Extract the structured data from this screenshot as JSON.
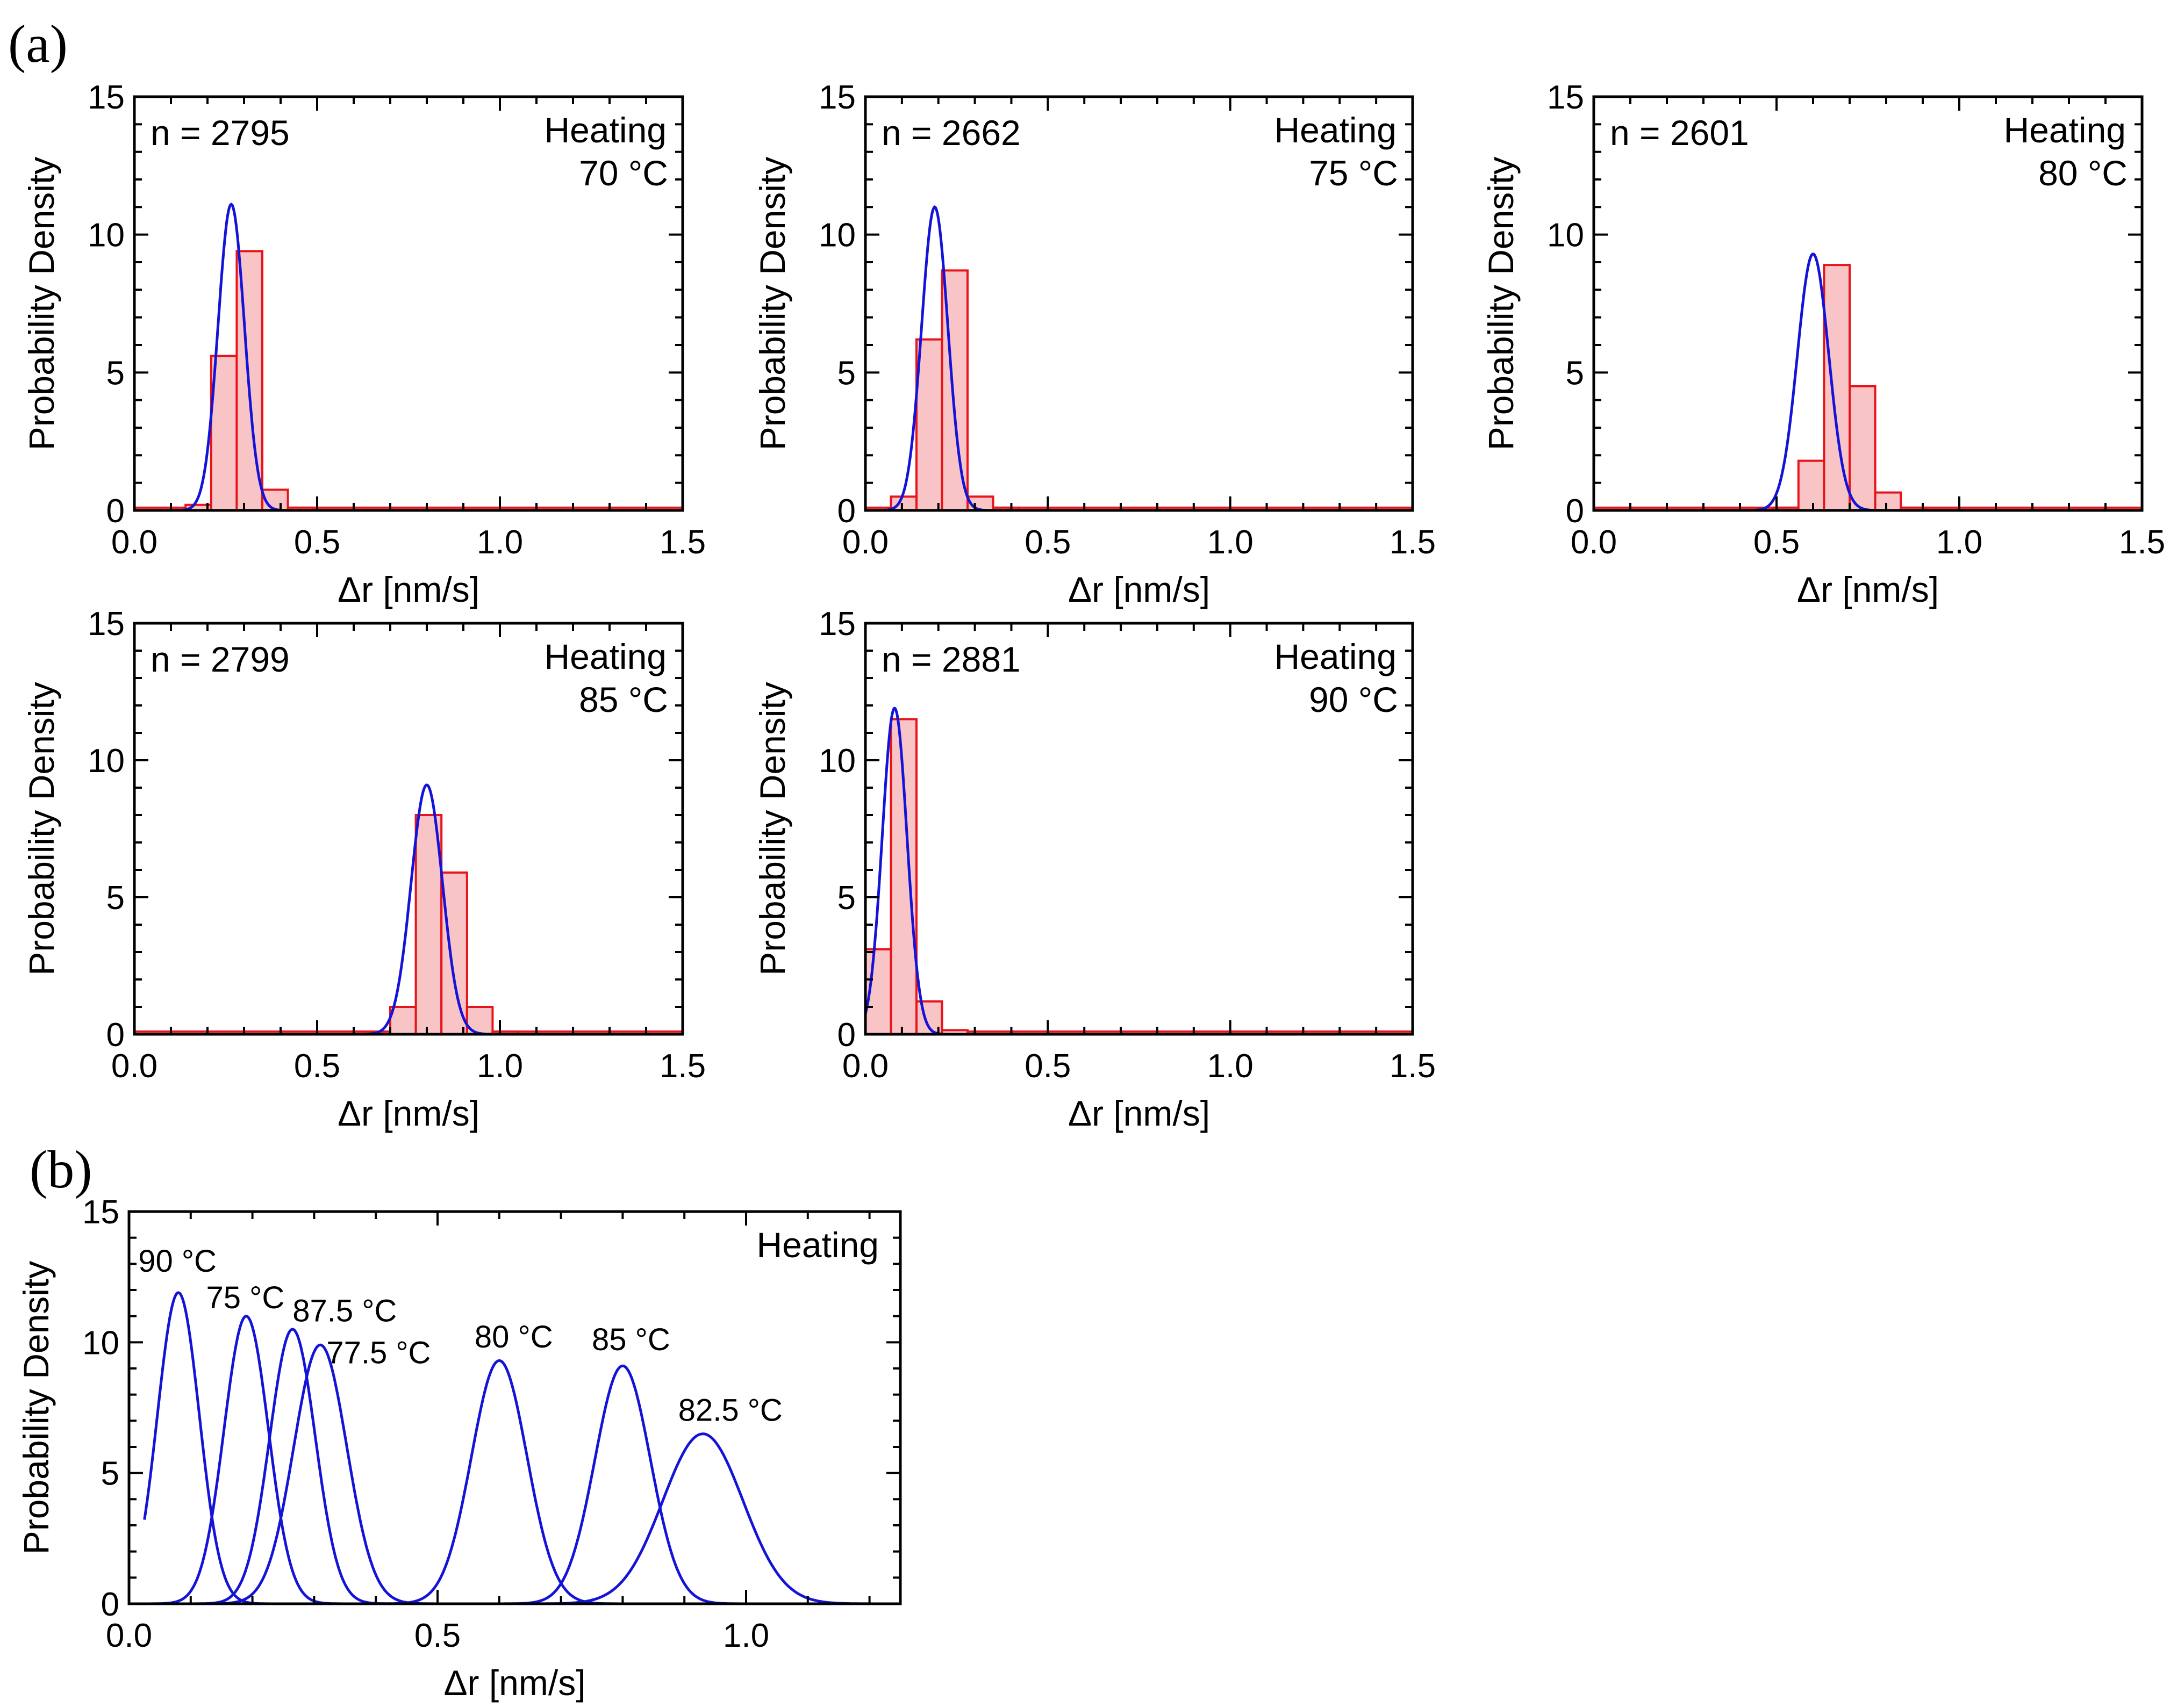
{
  "figure": {
    "label_a": "(a)",
    "label_b": "(b)"
  },
  "colors": {
    "hist_edge": "#e8141a",
    "hist_fill": "#f9c4c6",
    "fit": "#1414d8",
    "axis": "#000000"
  },
  "chart_data": [
    {
      "type": "bar",
      "panel": "a1",
      "annotation_n": "n = 2795",
      "annotation_mode": "Heating",
      "annotation_temp": "70 °C",
      "xlabel": "Δr [nm/s]",
      "ylabel": "Probability Density",
      "xlim": [
        0,
        1.5
      ],
      "ylim": [
        0,
        15
      ],
      "xticks": [
        0.0,
        0.5,
        1.0,
        1.5
      ],
      "xtick_labels": [
        "0.0",
        "0.5",
        "1.0",
        "1.5"
      ],
      "yticks": [
        0,
        5,
        10,
        15
      ],
      "ytick_labels": [
        "0",
        "5",
        "10",
        "15"
      ],
      "bin_width": 0.07,
      "bins": [
        [
          0.14,
          0.2
        ],
        [
          0.21,
          5.6
        ],
        [
          0.28,
          9.4
        ],
        [
          0.35,
          0.75
        ],
        [
          0.42,
          0.1
        ]
      ],
      "baseline": {
        "from": 0.0,
        "to": 1.5,
        "value": 0.1
      },
      "fit": {
        "mu": 0.265,
        "sigma": 0.036,
        "peak": 11.1,
        "x_from": 0.05,
        "x_to": 0.47
      }
    },
    {
      "type": "bar",
      "panel": "a2",
      "annotation_n": "n = 2662",
      "annotation_mode": "Heating",
      "annotation_temp": "75 °C",
      "xlabel": "Δr [nm/s]",
      "ylabel": "Probability Density",
      "xlim": [
        0,
        1.5
      ],
      "ylim": [
        0,
        15
      ],
      "xticks": [
        0.0,
        0.5,
        1.0,
        1.5
      ],
      "xtick_labels": [
        "0.0",
        "0.5",
        "1.0",
        "1.5"
      ],
      "yticks": [
        0,
        5,
        10,
        15
      ],
      "ytick_labels": [
        "0",
        "5",
        "10",
        "15"
      ],
      "bin_width": 0.07,
      "bins": [
        [
          0.07,
          0.5
        ],
        [
          0.14,
          6.2
        ],
        [
          0.21,
          8.7
        ],
        [
          0.28,
          0.5
        ],
        [
          0.35,
          0.1
        ]
      ],
      "baseline": {
        "from": 0.0,
        "to": 1.5,
        "value": 0.1
      },
      "fit": {
        "mu": 0.19,
        "sigma": 0.036,
        "peak": 11.0,
        "x_from": 0.0,
        "x_to": 0.4
      }
    },
    {
      "type": "bar",
      "panel": "a3",
      "annotation_n": "n = 2601",
      "annotation_mode": "Heating",
      "annotation_temp": "80 °C",
      "xlabel": "Δr [nm/s]",
      "ylabel": "Probability Density",
      "xlim": [
        0,
        1.5
      ],
      "ylim": [
        0,
        15
      ],
      "xticks": [
        0.0,
        0.5,
        1.0,
        1.5
      ],
      "xtick_labels": [
        "0.0",
        "0.5",
        "1.0",
        "1.5"
      ],
      "yticks": [
        0,
        5,
        10,
        15
      ],
      "ytick_labels": [
        "0",
        "5",
        "10",
        "15"
      ],
      "bin_width": 0.07,
      "bins": [
        [
          0.49,
          0.1
        ],
        [
          0.56,
          1.8
        ],
        [
          0.63,
          8.9
        ],
        [
          0.7,
          4.5
        ],
        [
          0.77,
          0.65
        ],
        [
          0.84,
          0.1
        ]
      ],
      "baseline": {
        "from": 0.0,
        "to": 1.5,
        "value": 0.1
      },
      "fit": {
        "mu": 0.6,
        "sigma": 0.043,
        "peak": 9.3,
        "x_from": 0.38,
        "x_to": 0.84
      }
    },
    {
      "type": "bar",
      "panel": "a4",
      "annotation_n": "n = 2799",
      "annotation_mode": "Heating",
      "annotation_temp": "85 °C",
      "xlabel": "Δr [nm/s]",
      "ylabel": "Probability Density",
      "xlim": [
        0,
        1.5
      ],
      "ylim": [
        0,
        15
      ],
      "xticks": [
        0.0,
        0.5,
        1.0,
        1.5
      ],
      "xtick_labels": [
        "0.0",
        "0.5",
        "1.0",
        "1.5"
      ],
      "yticks": [
        0,
        5,
        10,
        15
      ],
      "ytick_labels": [
        "0",
        "5",
        "10",
        "15"
      ],
      "bin_width": 0.07,
      "bins": [
        [
          0.7,
          1.0
        ],
        [
          0.77,
          8.0
        ],
        [
          0.84,
          5.9
        ],
        [
          0.91,
          1.0
        ],
        [
          0.98,
          0.1
        ]
      ],
      "baseline": {
        "from": 0.0,
        "to": 1.5,
        "value": 0.1
      },
      "fit": {
        "mu": 0.8,
        "sigma": 0.043,
        "peak": 9.1,
        "x_from": 0.57,
        "x_to": 1.04
      }
    },
    {
      "type": "bar",
      "panel": "a5",
      "annotation_n": "n = 2881",
      "annotation_mode": "Heating",
      "annotation_temp": "90 °C",
      "xlabel": "Δr [nm/s]",
      "ylabel": "Probability Density",
      "xlim": [
        0,
        1.5
      ],
      "ylim": [
        0,
        15
      ],
      "xticks": [
        0.0,
        0.5,
        1.0,
        1.5
      ],
      "xtick_labels": [
        "0.0",
        "0.5",
        "1.0",
        "1.5"
      ],
      "yticks": [
        0,
        5,
        10,
        15
      ],
      "ytick_labels": [
        "0",
        "5",
        "10",
        "15"
      ],
      "bin_width": 0.07,
      "bins": [
        [
          0.0,
          3.1
        ],
        [
          0.07,
          11.5
        ],
        [
          0.14,
          1.2
        ],
        [
          0.21,
          0.15
        ]
      ],
      "baseline": {
        "from": 0.0,
        "to": 1.5,
        "value": 0.1
      },
      "fit": {
        "mu": 0.08,
        "sigma": 0.034,
        "peak": 11.9,
        "x_from": 0.0,
        "x_to": 0.26
      }
    },
    {
      "type": "line",
      "panel": "b",
      "annotation_mode": "Heating",
      "xlabel": "Δr [nm/s]",
      "ylabel": "Probability Density",
      "xlim": [
        0,
        1.25
      ],
      "ylim": [
        0,
        15
      ],
      "xticks": [
        0.0,
        0.5,
        1.0
      ],
      "xtick_labels": [
        "0.0",
        "0.5",
        "1.0"
      ],
      "yticks": [
        0,
        5,
        10,
        15
      ],
      "ytick_labels": [
        "0",
        "5",
        "10",
        "15"
      ],
      "series": [
        {
          "name": "90 °C",
          "mu": 0.08,
          "sigma": 0.034,
          "peak": 11.9,
          "x_from": 0.025,
          "x_to": 0.26,
          "label_pos": [
            0.015,
            12.7
          ]
        },
        {
          "name": "75 °C",
          "mu": 0.19,
          "sigma": 0.036,
          "peak": 11.0,
          "x_from": 0.03,
          "x_to": 0.35,
          "label_pos": [
            0.125,
            11.3
          ]
        },
        {
          "name": "87.5 °C",
          "mu": 0.265,
          "sigma": 0.037,
          "peak": 10.5,
          "x_from": 0.1,
          "x_to": 0.46,
          "label_pos": [
            0.265,
            10.8
          ]
        },
        {
          "name": "77.5 °C",
          "mu": 0.31,
          "sigma": 0.043,
          "peak": 9.9,
          "x_from": 0.12,
          "x_to": 0.5,
          "label_pos": [
            0.32,
            9.2
          ]
        },
        {
          "name": "80 °C",
          "mu": 0.6,
          "sigma": 0.045,
          "peak": 9.3,
          "x_from": 0.4,
          "x_to": 0.82,
          "label_pos": [
            0.56,
            9.8
          ]
        },
        {
          "name": "85 °C",
          "mu": 0.8,
          "sigma": 0.045,
          "peak": 9.1,
          "x_from": 0.57,
          "x_to": 1.05,
          "label_pos": [
            0.75,
            9.7
          ]
        },
        {
          "name": "82.5 °C",
          "mu": 0.93,
          "sigma": 0.065,
          "peak": 6.5,
          "x_from": 0.56,
          "x_to": 1.25,
          "label_pos": [
            0.89,
            7.0
          ]
        }
      ]
    }
  ]
}
